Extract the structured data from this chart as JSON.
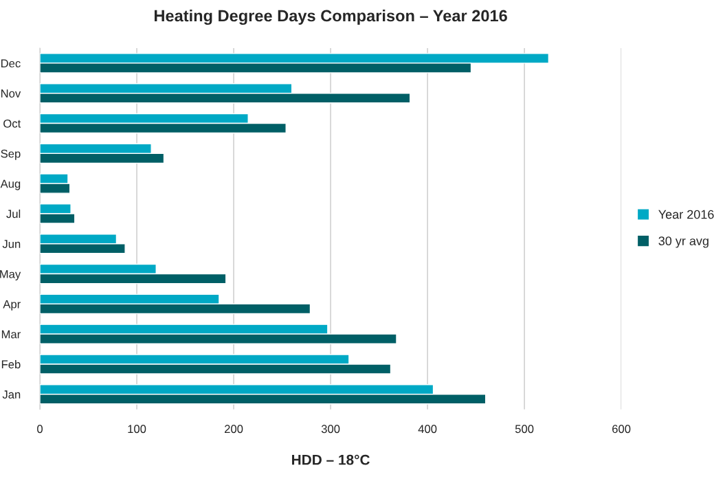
{
  "chart_data": {
    "type": "bar",
    "orientation": "horizontal",
    "title": "Heating Degree Days Comparison – Year 2016",
    "xlabel": "HDD – 18°C",
    "categories": [
      "Dec",
      "Nov",
      "Oct",
      "Sep",
      "Aug",
      "Jul",
      "Jun",
      "May",
      "Apr",
      "Mar",
      "Feb",
      "Jan"
    ],
    "series": [
      {
        "name": "Year 2016",
        "color": "#00a9c5",
        "values": [
          525,
          260,
          215,
          115,
          29,
          32,
          79,
          120,
          185,
          297,
          319,
          406
        ]
      },
      {
        "name": "30 yr avg",
        "color": "#005f66",
        "values": [
          445,
          382,
          254,
          128,
          31,
          36,
          88,
          192,
          279,
          368,
          362,
          460
        ]
      }
    ],
    "xlim": [
      0,
      600
    ],
    "xticks": [
      0,
      100,
      200,
      300,
      400,
      500,
      600
    ],
    "grid": "x",
    "legend": "right"
  }
}
